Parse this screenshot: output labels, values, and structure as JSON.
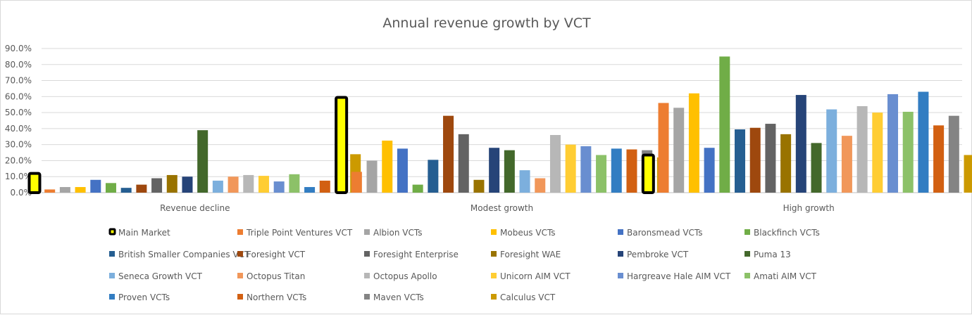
{
  "chart_data": {
    "type": "bar",
    "title": "Annual revenue growth by VCT",
    "xlabel": "",
    "ylabel": "",
    "ylim": [
      0,
      90
    ],
    "yticks": [
      "0.0%",
      "10.0%",
      "20.0%",
      "30.0%",
      "40.0%",
      "50.0%",
      "60.0%",
      "70.0%",
      "80.0%",
      "90.0%"
    ],
    "grid": true,
    "legend": "bottom",
    "categories": [
      "Revenue decline",
      "Modest growth",
      "High growth"
    ],
    "series": [
      {
        "name": "Main Market",
        "color": "#ffff00",
        "outline": "#000000",
        "values": [
          12.0,
          59.5,
          23.5
        ]
      },
      {
        "name": "Triple Point Ventures VCT",
        "color": "#ed7d31",
        "values": [
          2.0,
          13.0,
          56.0
        ]
      },
      {
        "name": "Albion VCTs",
        "color": "#a5a5a5",
        "values": [
          3.5,
          20.0,
          53.0
        ]
      },
      {
        "name": "Mobeus VCTs",
        "color": "#ffc000",
        "values": [
          3.5,
          32.5,
          62.0
        ]
      },
      {
        "name": "Baronsmead VCTs",
        "color": "#4472c4",
        "values": [
          8.0,
          27.5,
          28.0
        ]
      },
      {
        "name": "Blackfinch VCTs",
        "color": "#70ad47",
        "values": [
          6.0,
          5.0,
          85.0
        ]
      },
      {
        "name": "British Smaller Companies VCT",
        "color": "#255e91",
        "values": [
          3.0,
          20.5,
          39.5
        ]
      },
      {
        "name": "Foresight VCT",
        "color": "#9e480e",
        "values": [
          5.0,
          48.0,
          40.5
        ]
      },
      {
        "name": "Foresight Enterprise",
        "color": "#636363",
        "values": [
          9.0,
          36.5,
          43.0
        ]
      },
      {
        "name": "Foresight WAE",
        "color": "#997300",
        "values": [
          11.0,
          8.0,
          36.5
        ]
      },
      {
        "name": "Pembroke VCT",
        "color": "#264478",
        "values": [
          10.0,
          28.0,
          61.0
        ]
      },
      {
        "name": "Puma 13",
        "color": "#43682b",
        "values": [
          39.0,
          26.5,
          31.0
        ]
      },
      {
        "name": "Seneca Growth VCT",
        "color": "#7cafdd",
        "values": [
          7.5,
          14.0,
          52.0
        ]
      },
      {
        "name": "Octopus Titan",
        "color": "#f1975a",
        "values": [
          10.0,
          9.0,
          35.5
        ]
      },
      {
        "name": "Octopus Apollo",
        "color": "#b7b7b7",
        "values": [
          11.0,
          36.0,
          54.0
        ]
      },
      {
        "name": "Unicorn AIM VCT",
        "color": "#ffcd33",
        "values": [
          10.5,
          30.0,
          50.0
        ]
      },
      {
        "name": "Hargreave Hale AIM VCT",
        "color": "#698ed0",
        "values": [
          7.0,
          29.0,
          61.5
        ]
      },
      {
        "name": "Amati AIM VCT",
        "color": "#8cc168",
        "values": [
          11.5,
          23.5,
          50.5
        ]
      },
      {
        "name": "Proven VCTs",
        "color": "#327dc2",
        "values": [
          3.5,
          27.5,
          63.0
        ]
      },
      {
        "name": "Northern VCTs",
        "color": "#d26012",
        "values": [
          7.5,
          27.0,
          42.0
        ]
      },
      {
        "name": "Maven VCTs",
        "color": "#848484",
        "values": [
          16.5,
          26.5,
          48.0
        ]
      },
      {
        "name": "Calculus VCT",
        "color": "#cc9a00",
        "values": [
          24.0,
          22.0,
          23.5
        ]
      }
    ]
  }
}
